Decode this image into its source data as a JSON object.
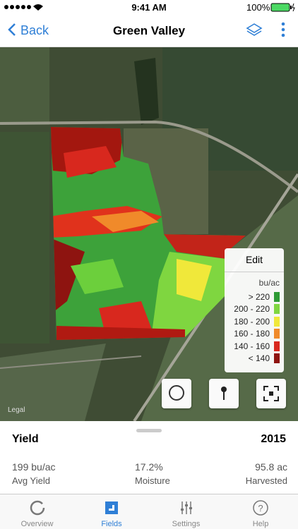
{
  "status_bar": {
    "time": "9:41 AM",
    "battery": "100%"
  },
  "nav_bar": {
    "back": "Back",
    "title": "Green Valley"
  },
  "map": {
    "attribution": "Legal",
    "legend": {
      "edit": "Edit",
      "unit": "bu/ac",
      "items": [
        {
          "label": "> 220",
          "color": "#2e9a35"
        },
        {
          "label": "200 - 220",
          "color": "#7fd640"
        },
        {
          "label": "180 - 200",
          "color": "#f0e83a"
        },
        {
          "label": "160 - 180",
          "color": "#f08a2a"
        },
        {
          "label": "140 - 160",
          "color": "#d8281e"
        },
        {
          "label": "< 140",
          "color": "#8e1410"
        }
      ]
    }
  },
  "panel": {
    "layer": "Yield",
    "year": "2015",
    "stats": [
      {
        "value": "199 bu/ac",
        "label": "Avg Yield"
      },
      {
        "value": "17.2%",
        "label": "Moisture"
      },
      {
        "value": "95.8 ac",
        "label": "Harvested"
      }
    ]
  },
  "tab_bar": {
    "tabs": [
      "Overview",
      "Fields",
      "Settings",
      "Help"
    ],
    "active": 1
  }
}
